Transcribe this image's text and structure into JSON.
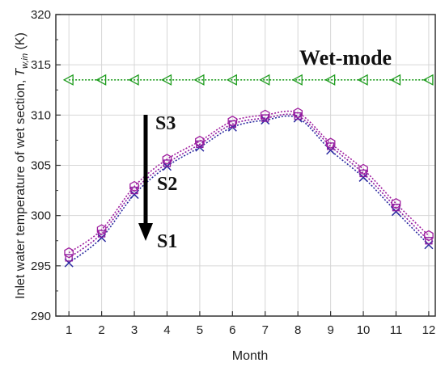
{
  "chart_data": {
    "type": "line",
    "title": "",
    "xlabel": "Month",
    "ylabel": "Inlet water temperature of wet section,",
    "ylabel_symbol": "T",
    "ylabel_subscript": "w,in",
    "ylabel_unit": " (K)",
    "xlim": [
      0.6,
      12.2
    ],
    "ylim": [
      290,
      320
    ],
    "xticks": [
      "1",
      "2",
      "3",
      "4",
      "5",
      "6",
      "7",
      "8",
      "9",
      "10",
      "11",
      "12"
    ],
    "yticks": [
      "290",
      "295",
      "300",
      "305",
      "310",
      "315",
      "320"
    ],
    "grid": true,
    "x": [
      1,
      2,
      3,
      4,
      5,
      6,
      7,
      8,
      9,
      10,
      11,
      12
    ],
    "series": [
      {
        "name": "",
        "color": "#1e9c1e",
        "marker": "triangle-left",
        "values": [
          313.5,
          313.5,
          313.5,
          313.5,
          313.5,
          313.5,
          313.5,
          313.5,
          313.5,
          313.5,
          313.5,
          313.5
        ]
      },
      {
        "name": "",
        "color": "#2a2aa0",
        "marker": "x",
        "values": [
          295.3,
          297.8,
          302.1,
          304.9,
          306.8,
          308.8,
          309.5,
          309.7,
          306.5,
          303.8,
          300.4,
          297.1
        ]
      },
      {
        "name": "",
        "color": "#8a1aa0",
        "marker": "square",
        "values": [
          295.8,
          298.2,
          302.5,
          305.2,
          307.1,
          309.1,
          309.7,
          309.9,
          306.9,
          304.2,
          300.8,
          297.5
        ]
      },
      {
        "name": "",
        "color": "#a020a0",
        "marker": "hexagon",
        "values": [
          296.3,
          298.6,
          302.9,
          305.6,
          307.4,
          309.4,
          310.0,
          310.2,
          307.2,
          304.6,
          301.2,
          298.0
        ]
      }
    ],
    "annotations": {
      "wet_mode": "Wet-mode",
      "s3": "S3",
      "s2": "S2",
      "s1": "S1"
    }
  }
}
